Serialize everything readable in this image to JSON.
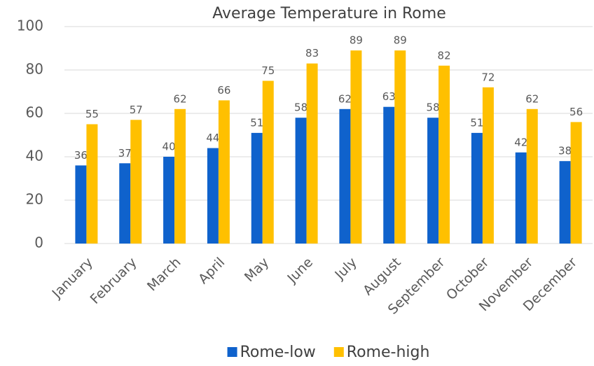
{
  "chart_data": {
    "type": "bar",
    "title": "Average Temperature in Rome",
    "categories": [
      "January",
      "February",
      "March",
      "April",
      "May",
      "June",
      "July",
      "August",
      "September",
      "October",
      "November",
      "December"
    ],
    "series": [
      {
        "name": "Rome-low",
        "color": "#0f62cc",
        "values": [
          36,
          37,
          40,
          44,
          51,
          58,
          62,
          63,
          58,
          51,
          42,
          38
        ]
      },
      {
        "name": "Rome-high",
        "color": "#ffc000",
        "values": [
          55,
          57,
          62,
          66,
          75,
          83,
          89,
          89,
          82,
          72,
          62,
          56
        ]
      }
    ],
    "ylim": [
      0,
      100
    ],
    "yticks": [
      0,
      20,
      40,
      60,
      80,
      100
    ],
    "grid": true,
    "legend": "bottom"
  }
}
